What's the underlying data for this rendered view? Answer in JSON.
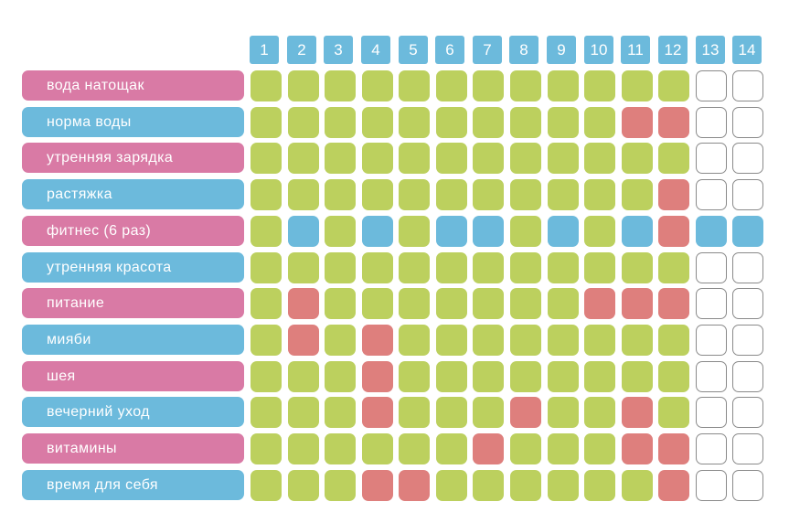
{
  "colors": {
    "pink": "#d97aa5",
    "blue": "#6cbadc",
    "done": "#bcd05e",
    "missed": "#de7f7d",
    "fitness": "#6cbadc",
    "empty": "#ffffff"
  },
  "days": [
    "1",
    "2",
    "3",
    "4",
    "5",
    "6",
    "7",
    "8",
    "9",
    "10",
    "11",
    "12",
    "13",
    "14"
  ],
  "habits": [
    {
      "label": "вода натощак",
      "color": "pink",
      "cells": [
        "done",
        "done",
        "done",
        "done",
        "done",
        "done",
        "done",
        "done",
        "done",
        "done",
        "done",
        "done",
        "empty",
        "empty"
      ]
    },
    {
      "label": "норма воды",
      "color": "blue",
      "cells": [
        "done",
        "done",
        "done",
        "done",
        "done",
        "done",
        "done",
        "done",
        "done",
        "done",
        "missed",
        "missed",
        "empty",
        "empty"
      ]
    },
    {
      "label": "утренняя зарядка",
      "color": "pink",
      "cells": [
        "done",
        "done",
        "done",
        "done",
        "done",
        "done",
        "done",
        "done",
        "done",
        "done",
        "done",
        "done",
        "empty",
        "empty"
      ]
    },
    {
      "label": "растяжка",
      "color": "blue",
      "cells": [
        "done",
        "done",
        "done",
        "done",
        "done",
        "done",
        "done",
        "done",
        "done",
        "done",
        "done",
        "missed",
        "empty",
        "empty"
      ]
    },
    {
      "label": "фитнес (6 раз)",
      "color": "pink",
      "cells": [
        "done",
        "fitness",
        "done",
        "fitness",
        "done",
        "fitness",
        "fitness",
        "done",
        "fitness",
        "done",
        "fitness",
        "missed",
        "fitness",
        "fitness"
      ]
    },
    {
      "label": "утренняя красота",
      "color": "blue",
      "cells": [
        "done",
        "done",
        "done",
        "done",
        "done",
        "done",
        "done",
        "done",
        "done",
        "done",
        "done",
        "done",
        "empty",
        "empty"
      ]
    },
    {
      "label": "питание",
      "color": "pink",
      "cells": [
        "done",
        "missed",
        "done",
        "done",
        "done",
        "done",
        "done",
        "done",
        "done",
        "missed",
        "missed",
        "missed",
        "empty",
        "empty"
      ]
    },
    {
      "label": "мияби",
      "color": "blue",
      "cells": [
        "done",
        "missed",
        "done",
        "missed",
        "done",
        "done",
        "done",
        "done",
        "done",
        "done",
        "done",
        "done",
        "empty",
        "empty"
      ]
    },
    {
      "label": "шея",
      "color": "pink",
      "cells": [
        "done",
        "done",
        "done",
        "missed",
        "done",
        "done",
        "done",
        "done",
        "done",
        "done",
        "done",
        "done",
        "empty",
        "empty"
      ]
    },
    {
      "label": "вечерний уход",
      "color": "blue",
      "cells": [
        "done",
        "done",
        "done",
        "missed",
        "done",
        "done",
        "done",
        "missed",
        "done",
        "done",
        "missed",
        "done",
        "empty",
        "empty"
      ]
    },
    {
      "label": "витамины",
      "color": "pink",
      "cells": [
        "done",
        "done",
        "done",
        "done",
        "done",
        "done",
        "missed",
        "done",
        "done",
        "done",
        "missed",
        "missed",
        "empty",
        "empty"
      ]
    },
    {
      "label": "время для себя",
      "color": "blue",
      "cells": [
        "done",
        "done",
        "done",
        "missed",
        "missed",
        "done",
        "done",
        "done",
        "done",
        "done",
        "done",
        "missed",
        "empty",
        "empty"
      ]
    }
  ]
}
